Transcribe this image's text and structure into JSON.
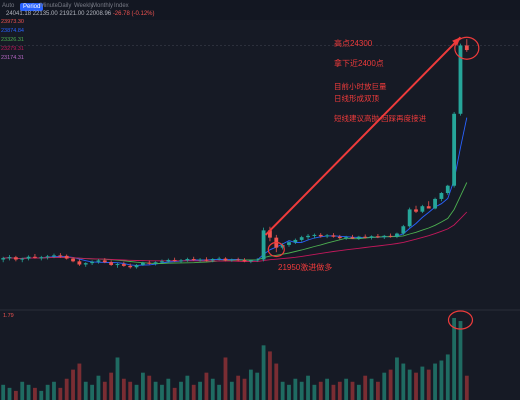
{
  "toolbar": {
    "tabs": [
      "Auto",
      "Period",
      "Minute",
      "Daily",
      "Weekly",
      "Monthly",
      "Index"
    ],
    "ohlc": [
      "24041.18",
      "22135.00",
      "21921.00",
      "22008.96",
      "-26.78 (-0.12%)"
    ]
  },
  "price_labels": [
    "23973.30",
    "23874.84",
    "23326.31",
    "23279.31",
    "23174.31"
  ],
  "colors": {
    "up": "#26a69a",
    "down": "#ef5350",
    "annotation": "#ef3b3b",
    "ma_fast": "#2962ff",
    "ma_mid": "#4caf50",
    "ma_slow": "#c2185b"
  },
  "annotations": {
    "peak": "高点24300",
    "pullback": "拿下近2400点",
    "line1": "目前小时放巨量",
    "line2": "日线形成双顶",
    "line3": "短线建议高抛 回踩再度接进",
    "entry": "21950激进做多"
  },
  "volume_label": "1.79",
  "chart_data": {
    "type": "candlestick",
    "candles": [
      [
        21880,
        21910,
        21850,
        21895
      ],
      [
        21895,
        21930,
        21870,
        21905
      ],
      [
        21905,
        21920,
        21860,
        21880
      ],
      [
        21880,
        21900,
        21850,
        21890
      ],
      [
        21890,
        21925,
        21870,
        21910
      ],
      [
        21910,
        21940,
        21890,
        21900
      ],
      [
        21900,
        21920,
        21870,
        21905
      ],
      [
        21905,
        21930,
        21880,
        21915
      ],
      [
        21915,
        21945,
        21895,
        21925
      ],
      [
        21925,
        21950,
        21900,
        21920
      ],
      [
        21920,
        21935,
        21880,
        21890
      ],
      [
        21890,
        21900,
        21850,
        21860
      ],
      [
        21860,
        21880,
        21810,
        21825
      ],
      [
        21825,
        21850,
        21800,
        21840
      ],
      [
        21840,
        21870,
        21820,
        21855
      ],
      [
        21855,
        21885,
        21835,
        21870
      ],
      [
        21870,
        21895,
        21840,
        21850
      ],
      [
        21850,
        21870,
        21810,
        21820
      ],
      [
        21820,
        21845,
        21790,
        21830
      ],
      [
        21830,
        21855,
        21800,
        21810
      ],
      [
        21810,
        21835,
        21780,
        21795
      ],
      [
        21795,
        21830,
        21780,
        21820
      ],
      [
        21820,
        21855,
        21810,
        21845
      ],
      [
        21845,
        21870,
        21825,
        21835
      ],
      [
        21835,
        21860,
        21815,
        21850
      ],
      [
        21850,
        21880,
        21835,
        21860
      ],
      [
        21860,
        21890,
        21845,
        21875
      ],
      [
        21875,
        21900,
        21855,
        21865
      ],
      [
        21865,
        21885,
        21845,
        21870
      ],
      [
        21870,
        21900,
        21855,
        21885
      ],
      [
        21885,
        21910,
        21865,
        21875
      ],
      [
        21875,
        21895,
        21855,
        21880
      ],
      [
        21880,
        21905,
        21860,
        21870
      ],
      [
        21870,
        21895,
        21850,
        21885
      ],
      [
        21885,
        21910,
        21870,
        21890
      ],
      [
        21890,
        21905,
        21860,
        21870
      ],
      [
        21870,
        21890,
        21855,
        21880
      ],
      [
        21880,
        21900,
        21860,
        21875
      ],
      [
        21875,
        21895,
        21850,
        21860
      ],
      [
        21860,
        21880,
        21840,
        21870
      ],
      [
        21870,
        21895,
        21855,
        21880
      ],
      [
        21880,
        22230,
        21860,
        22200
      ],
      [
        22200,
        22240,
        22080,
        22120
      ],
      [
        22120,
        22150,
        21960,
        22010
      ],
      [
        22010,
        22060,
        21990,
        22040
      ],
      [
        22040,
        22080,
        22020,
        22070
      ],
      [
        22070,
        22110,
        22050,
        22095
      ],
      [
        22095,
        22140,
        22075,
        22125
      ],
      [
        22125,
        22160,
        22100,
        22140
      ],
      [
        22140,
        22165,
        22110,
        22150
      ],
      [
        22150,
        22170,
        22120,
        22135
      ],
      [
        22135,
        22160,
        22115,
        22145
      ],
      [
        22145,
        22170,
        22120,
        22130
      ],
      [
        22130,
        22150,
        22100,
        22115
      ],
      [
        22115,
        22140,
        22095,
        22125
      ],
      [
        22125,
        22150,
        22105,
        22110
      ],
      [
        22110,
        22140,
        22095,
        22130
      ],
      [
        22130,
        22155,
        22110,
        22120
      ],
      [
        22120,
        22145,
        22100,
        22135
      ],
      [
        22135,
        22160,
        22115,
        22125
      ],
      [
        22125,
        22150,
        22105,
        22140
      ],
      [
        22140,
        22165,
        22120,
        22130
      ],
      [
        22130,
        22175,
        22115,
        22165
      ],
      [
        22165,
        22260,
        22150,
        22245
      ],
      [
        22245,
        22450,
        22230,
        22430
      ],
      [
        22430,
        22470,
        22390,
        22405
      ],
      [
        22405,
        22480,
        22390,
        22465
      ],
      [
        22465,
        22520,
        22440,
        22440
      ],
      [
        22440,
        22560,
        22430,
        22545
      ],
      [
        22545,
        22620,
        22520,
        22610
      ],
      [
        22610,
        22700,
        22590,
        22690
      ],
      [
        22690,
        23500,
        22670,
        23480
      ],
      [
        23480,
        24250,
        23460,
        24230
      ],
      [
        24230,
        24300,
        24160,
        24180
      ]
    ],
    "volume": [
      5,
      4,
      3,
      6,
      5,
      4,
      3,
      5,
      6,
      4,
      7,
      10,
      12,
      6,
      5,
      8,
      6,
      9,
      14,
      7,
      6,
      5,
      9,
      8,
      6,
      5,
      7,
      4,
      6,
      8,
      5,
      6,
      9,
      7,
      5,
      14,
      6,
      8,
      7,
      10,
      9,
      18,
      16,
      12,
      6,
      5,
      7,
      6,
      8,
      5,
      6,
      7,
      5,
      6,
      7,
      6,
      5,
      8,
      7,
      6,
      9,
      10,
      14,
      12,
      10,
      9,
      11,
      10,
      12,
      13,
      15,
      27,
      26,
      8
    ],
    "ylim": [
      21600,
      24400
    ]
  }
}
